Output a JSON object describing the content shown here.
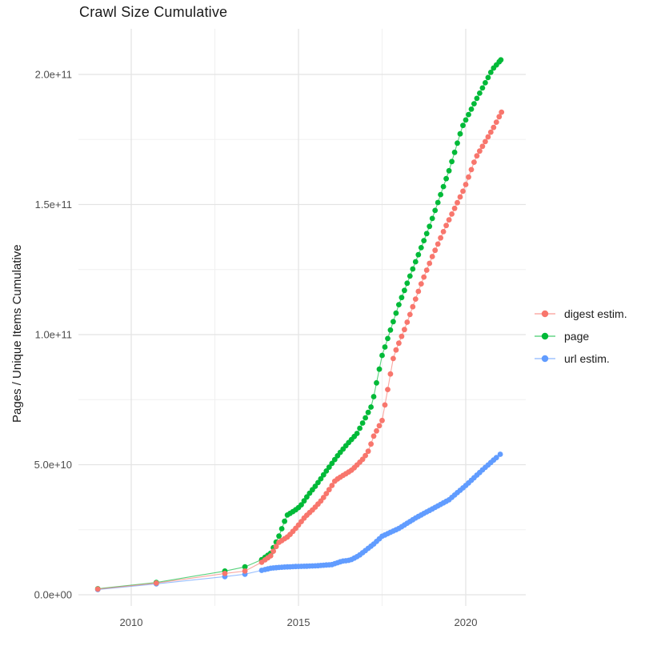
{
  "page": {
    "title": "Crawl Size Cumulative",
    "background_color": "#ffffff",
    "grid_major_color": "#e4e4e4",
    "grid_minor_color": "#f0f0f0",
    "tick_label_color": "#4d4d4d"
  },
  "chart_data": {
    "type": "line",
    "title": "Crawl Size Cumulative",
    "xlabel": "",
    "ylabel": "Pages / Unique Items Cumulative",
    "legend_position": "right",
    "grid": "major+minor, white panel background, no axis lines (ggplot minimal style)",
    "x_axis": {
      "ticks": [
        2010,
        2015,
        2020
      ],
      "tick_labels": [
        "2010",
        "2015",
        "2020"
      ],
      "minor_ticks": [
        2012.5,
        2017.5
      ],
      "range": [
        2008.4,
        2021.8
      ]
    },
    "y_axis": {
      "ticks_e9": [
        0,
        50,
        100,
        150,
        200
      ],
      "tick_labels": [
        "0.0e+00",
        "5.0e+10",
        "1.0e+11",
        "1.5e+11",
        "2.0e+11"
      ],
      "minor_ticks_e9": [
        25,
        75,
        125,
        175
      ],
      "range_e9": [
        -4.3,
        217
      ]
    },
    "sampling_note": "points plotted per crawl: sparse early crawls, then ~monthly from 2014 to early 2021; values below in billions (1e9) of pages/items, anchor points read from the curve",
    "dense_start_year": 2014.0,
    "dense_step_years": 0.08333,
    "series": [
      {
        "name": "digest estim.",
        "color": "#F8766D",
        "anchors_year_value_e9": [
          [
            2009.0,
            2.2
          ],
          [
            2010.75,
            4.5
          ],
          [
            2012.8,
            8.2
          ],
          [
            2013.4,
            9.1
          ],
          [
            2013.9,
            12.5
          ],
          [
            2014.17,
            15
          ],
          [
            2014.4,
            20
          ],
          [
            2014.7,
            22.5
          ],
          [
            2014.95,
            26
          ],
          [
            2015.2,
            30
          ],
          [
            2015.45,
            33
          ],
          [
            2015.7,
            36.5
          ],
          [
            2015.95,
            41
          ],
          [
            2016.1,
            44
          ],
          [
            2016.35,
            46
          ],
          [
            2016.6,
            48
          ],
          [
            2016.8,
            50.5
          ],
          [
            2016.95,
            52.5
          ],
          [
            2017.1,
            55.5
          ],
          [
            2017.25,
            61
          ],
          [
            2017.5,
            67
          ],
          [
            2017.85,
            92
          ],
          [
            2018.2,
            103
          ],
          [
            2018.65,
            119
          ],
          [
            2019.0,
            130
          ],
          [
            2019.4,
            141.5
          ],
          [
            2019.95,
            156
          ],
          [
            2020.3,
            168
          ],
          [
            2020.85,
            180
          ],
          [
            2021.07,
            185.5
          ]
        ]
      },
      {
        "name": "page",
        "color": "#00BA38",
        "anchors_year_value_e9": [
          [
            2009.0,
            2.3
          ],
          [
            2010.75,
            4.7
          ],
          [
            2012.8,
            9.1
          ],
          [
            2013.4,
            10.7
          ],
          [
            2013.9,
            13.5
          ],
          [
            2014.17,
            16
          ],
          [
            2014.4,
            22
          ],
          [
            2014.65,
            30.5
          ],
          [
            2014.9,
            32.5
          ],
          [
            2015.05,
            34
          ],
          [
            2015.3,
            38.5
          ],
          [
            2015.55,
            42.5
          ],
          [
            2015.8,
            47
          ],
          [
            2016.0,
            50.5
          ],
          [
            2016.2,
            54
          ],
          [
            2016.5,
            58.5
          ],
          [
            2016.75,
            62
          ],
          [
            2017.0,
            68
          ],
          [
            2017.2,
            73
          ],
          [
            2017.5,
            92
          ],
          [
            2018.0,
            111.5
          ],
          [
            2018.5,
            128
          ],
          [
            2018.9,
            141
          ],
          [
            2019.2,
            152
          ],
          [
            2019.5,
            163
          ],
          [
            2019.9,
            180
          ],
          [
            2020.3,
            190
          ],
          [
            2020.8,
            202
          ],
          [
            2021.05,
            205.6
          ]
        ]
      },
      {
        "name": "url estim.",
        "color": "#619CFF",
        "anchors_year_value_e9": [
          [
            2009.0,
            2.0
          ],
          [
            2010.75,
            4.2
          ],
          [
            2012.8,
            7.0
          ],
          [
            2013.4,
            7.9
          ],
          [
            2013.9,
            9.4
          ],
          [
            2014.17,
            10.2
          ],
          [
            2014.5,
            10.6
          ],
          [
            2015.0,
            10.9
          ],
          [
            2015.5,
            11.1
          ],
          [
            2016.0,
            11.6
          ],
          [
            2016.3,
            12.9
          ],
          [
            2016.55,
            13.3
          ],
          [
            2016.8,
            15.0
          ],
          [
            2017.0,
            17.0
          ],
          [
            2017.25,
            19.5
          ],
          [
            2017.5,
            22.5
          ],
          [
            2018.0,
            25.5
          ],
          [
            2018.5,
            29.5
          ],
          [
            2019.0,
            33
          ],
          [
            2019.5,
            36.5
          ],
          [
            2020.0,
            42
          ],
          [
            2020.5,
            48
          ],
          [
            2021.03,
            54
          ]
        ]
      }
    ]
  }
}
